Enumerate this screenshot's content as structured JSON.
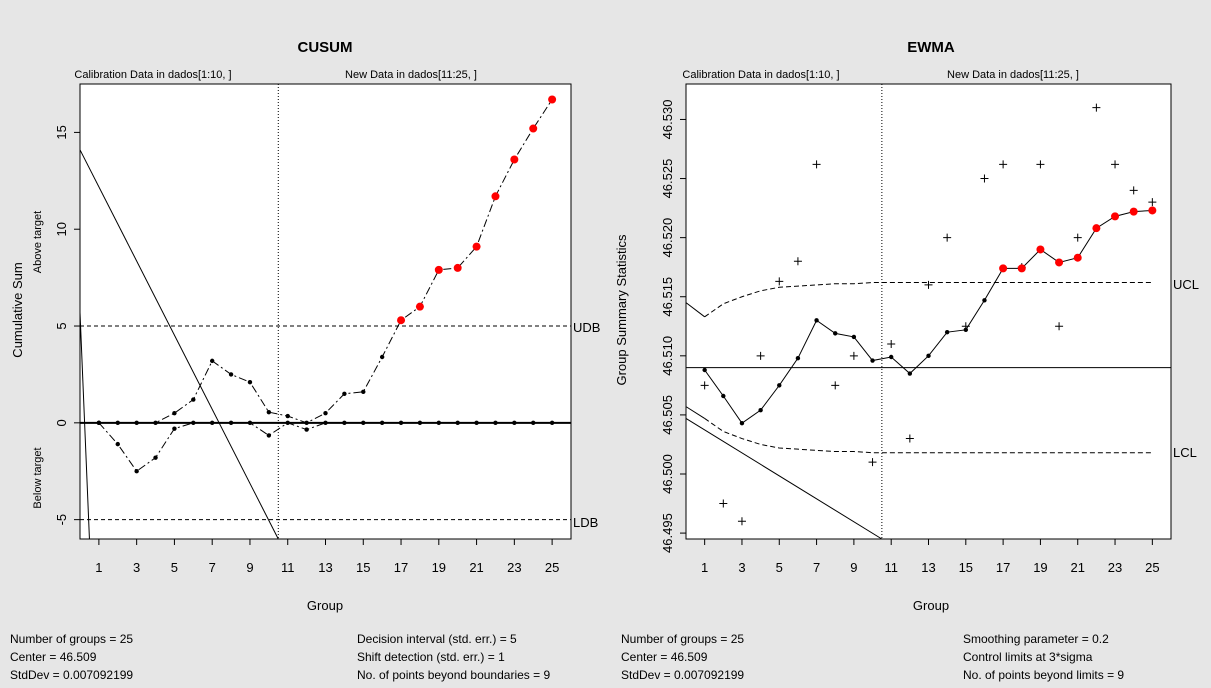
{
  "chart_data": [
    {
      "type": "line",
      "title": "CUSUM",
      "xlabel": "Group",
      "ylabel": "Cumulative Sum",
      "ylabel_upper": "Above target",
      "ylabel_lower": "Below target",
      "ylim": [
        -6,
        17.5
      ],
      "xlim": [
        0,
        26
      ],
      "x_ticks": [
        1,
        3,
        5,
        7,
        9,
        11,
        13,
        15,
        17,
        19,
        21,
        23,
        25
      ],
      "y_ticks": [
        -5,
        0,
        5,
        10,
        15
      ],
      "section_labels": [
        "Calibration Data in dados[1:10, ]",
        "New Data in dados[11:25, ]"
      ],
      "divider_x": 10.5,
      "boundaries": [
        {
          "label": "UDB",
          "value": 5
        },
        {
          "label": "LDB",
          "value": -5
        }
      ],
      "grid": false,
      "series": [
        {
          "values": [
            0,
            0,
            0,
            0,
            0.5,
            1.2,
            3.2,
            2.5,
            2.1,
            0.55,
            0.35,
            0,
            0.5,
            1.5,
            1.6,
            3.4,
            5.3,
            6.0,
            7.9,
            8.0,
            9.1,
            11.7,
            13.6,
            15.2,
            16.7
          ]
        },
        {
          "values": [
            0,
            -1.1,
            -2.5,
            -1.8,
            -0.3,
            0,
            0,
            0,
            0,
            -0.65,
            0,
            -0.35,
            0,
            0,
            0,
            0,
            0,
            0,
            0,
            0,
            0,
            0,
            0,
            0,
            0
          ]
        }
      ],
      "beyond_color": "#ff0000",
      "beyond_threshold": 5,
      "footer": {
        "left": [
          "Number of groups = 25",
          "Center = 46.509",
          "StdDev = 0.007092199"
        ],
        "right": [
          "Decision interval (std. err.) = 5",
          "Shift detection (std. err.) = 1",
          "No. of points beyond boundaries = 9"
        ]
      }
    },
    {
      "type": "line",
      "title": "EWMA",
      "xlabel": "Group",
      "ylabel": "Group Summary Statistics",
      "ylim": [
        46.4945,
        46.533
      ],
      "xlim": [
        0,
        26
      ],
      "x_ticks": [
        1,
        3,
        5,
        7,
        9,
        11,
        13,
        15,
        17,
        19,
        21,
        23,
        25
      ],
      "y_ticks": [
        46.495,
        46.5,
        46.505,
        46.51,
        46.515,
        46.52,
        46.525,
        46.53
      ],
      "y_tick_labels": [
        "46.495",
        "46.500",
        "46.505",
        "46.510",
        "46.515",
        "46.520",
        "46.525",
        "46.530"
      ],
      "section_labels": [
        "Calibration Data in dados[1:10, ]",
        "New Data in dados[11:25, ]"
      ],
      "divider_x": 10.5,
      "center": 46.509,
      "limits": [
        {
          "label": "UCL"
        },
        {
          "label": "LCL"
        }
      ],
      "grid": false,
      "group_stats": [
        46.5075,
        46.4975,
        46.496,
        46.51,
        46.5163,
        46.518,
        46.5262,
        46.5075,
        46.51,
        46.501,
        46.511,
        46.503,
        46.516,
        46.52,
        46.5125,
        46.525,
        46.5262,
        46.5175,
        46.5262,
        46.5125,
        46.52,
        46.531,
        46.5262,
        46.524,
        46.523
      ],
      "ewma": [
        46.5088,
        46.5066,
        46.5043,
        46.5054,
        46.5075,
        46.5098,
        46.513,
        46.5119,
        46.5116,
        46.5096,
        46.5099,
        46.5085,
        46.51,
        46.512,
        46.5122,
        46.5147,
        46.5174,
        46.5174,
        46.519,
        46.5179,
        46.5183,
        46.5208,
        46.5218,
        46.5222,
        46.5223
      ],
      "ucl": [
        46.5133,
        46.5144,
        46.515,
        46.5155,
        46.5158,
        46.5159,
        46.516,
        46.5161,
        46.5161,
        46.5162,
        46.5162,
        46.5162,
        46.5162,
        46.5162,
        46.5162,
        46.5162,
        46.5162,
        46.5162,
        46.5162,
        46.5162,
        46.5162,
        46.5162,
        46.5162,
        46.5162,
        46.5162
      ],
      "lcl": [
        46.5047,
        46.5036,
        46.503,
        46.5025,
        46.5022,
        46.5021,
        46.502,
        46.5019,
        46.5019,
        46.5018,
        46.5018,
        46.5018,
        46.5018,
        46.5018,
        46.5018,
        46.5018,
        46.5018,
        46.5018,
        46.5018,
        46.5018,
        46.5018,
        46.5018,
        46.5018,
        46.5018,
        46.5018
      ],
      "beyond_color": "#ff0000",
      "footer": {
        "left": [
          "Number of groups = 25",
          "Center = 46.509",
          "StdDev = 0.007092199"
        ],
        "right": [
          "Smoothing parameter =  0.2",
          "Control limits at 3*sigma",
          "No. of points beyond limits = 9"
        ]
      }
    }
  ]
}
